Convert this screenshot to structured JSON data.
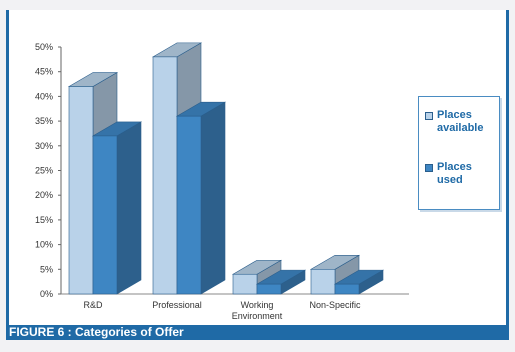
{
  "caption": "FIGURE 6 : Categories of Offer",
  "chart_data": {
    "type": "bar",
    "categories": [
      "R&D",
      "Professional",
      "Working Environment",
      "Non-Specific"
    ],
    "category_lines": [
      [
        "R&D"
      ],
      [
        "Professional"
      ],
      [
        "Working",
        "Environment"
      ],
      [
        "Non-Specific"
      ]
    ],
    "series": [
      {
        "name": "Places available",
        "values": [
          42,
          48,
          4,
          5
        ],
        "color": "#b9d2e9"
      },
      {
        "name": "Places used",
        "values": [
          32,
          36,
          2,
          2
        ],
        "color": "#3e86c3"
      }
    ],
    "ylim": [
      0,
      50
    ],
    "y_ticks": [
      "0%",
      "5%",
      "10%",
      "15%",
      "20%",
      "25%",
      "30%",
      "35%",
      "40%",
      "45%",
      "50%"
    ],
    "xlabel": "",
    "ylabel": "",
    "legend_position": "right",
    "grid": false,
    "style": "3d"
  },
  "legend": {
    "items": [
      {
        "lines": [
          "Places",
          "available"
        ]
      },
      {
        "lines": [
          "Places used"
        ]
      }
    ]
  }
}
